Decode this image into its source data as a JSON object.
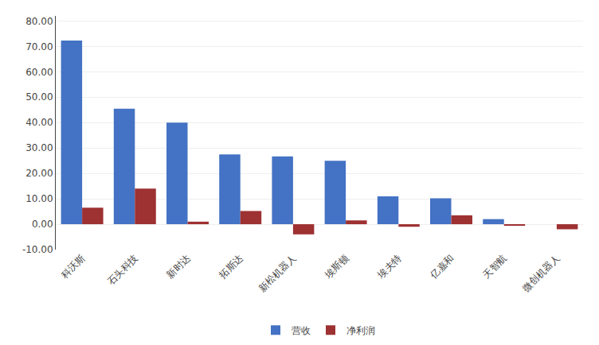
{
  "chart_data": {
    "type": "bar",
    "categories": [
      "科沃斯",
      "石头科技",
      "新时达",
      "拓斯达",
      "新松机器人",
      "埃斯顿",
      "埃夫特",
      "亿嘉和",
      "天智航",
      "微创机器人"
    ],
    "series": [
      {
        "name": "营收",
        "color": "#4472C4",
        "values": [
          72.3,
          45.5,
          40.0,
          27.5,
          26.7,
          25.0,
          11.0,
          10.2,
          2.0,
          0.0
        ]
      },
      {
        "name": "净利润",
        "color": "#9E3132",
        "values": [
          6.5,
          14.0,
          1.0,
          5.2,
          -4.0,
          1.5,
          -1.0,
          3.5,
          -0.5,
          -2.0
        ]
      }
    ],
    "ylim": [
      -10,
      82
    ],
    "yticks": [
      {
        "value": -10,
        "label": "-10.00"
      },
      {
        "value": 0,
        "label": "0.00"
      },
      {
        "value": 10,
        "label": "10.00"
      },
      {
        "value": 20,
        "label": "20.00"
      },
      {
        "value": 30,
        "label": "30.00"
      },
      {
        "value": 40,
        "label": "40.00"
      },
      {
        "value": 50,
        "label": "50.00"
      },
      {
        "value": 60,
        "label": "60.00"
      },
      {
        "value": 70,
        "label": "70.00"
      },
      {
        "value": 80,
        "label": "80.00"
      }
    ],
    "grid": true,
    "legend": "bottom"
  }
}
